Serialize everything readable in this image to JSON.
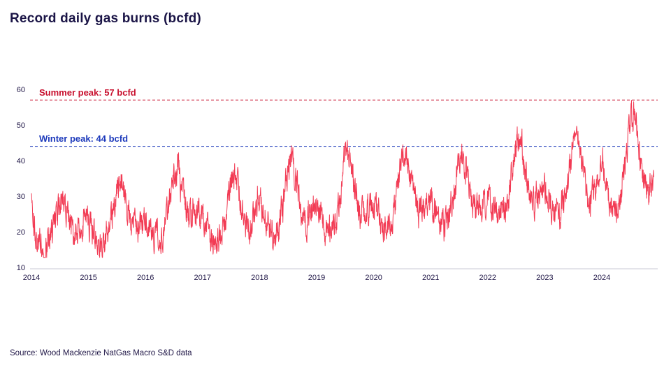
{
  "chart_data": {
    "type": "line",
    "title": "Record daily gas burns (bcfd)",
    "source": "Source: Wood Mackenzie NatGas Macro S&D data",
    "series_name": "Daily gas burns (bcfd)",
    "line_color": "#f23b54",
    "x_years": [
      2014,
      2015,
      2016,
      2017,
      2018,
      2019,
      2020,
      2021,
      2022,
      2023,
      2024
    ],
    "ylim": [
      10,
      60
    ],
    "yticks": [
      10,
      20,
      30,
      40,
      50,
      60
    ],
    "grid": "off",
    "legend": "none",
    "reference_lines": [
      {
        "label": "Summer peak: 57 bcfd",
        "value": 57,
        "color": "#c8102e"
      },
      {
        "label": "Winter peak: 44 bcfd",
        "value": 44,
        "color": "#1c39bb"
      }
    ],
    "monthly_means": [
      29,
      16,
      17,
      16,
      18,
      23,
      28,
      28,
      24,
      20,
      20,
      23,
      23,
      21,
      18,
      17,
      19,
      25,
      33,
      35,
      28,
      22,
      21,
      22,
      24,
      23,
      19,
      19,
      21,
      27,
      36,
      39,
      30,
      24,
      23,
      26,
      25,
      22,
      18,
      17,
      19,
      25,
      34,
      37,
      29,
      22,
      21,
      24,
      29,
      25,
      20,
      19,
      21,
      29,
      38,
      41,
      31,
      24,
      23,
      27,
      27,
      24,
      20,
      20,
      23,
      30,
      41,
      43,
      33,
      25,
      24,
      26,
      26,
      25,
      22,
      21,
      25,
      32,
      42,
      43,
      34,
      26,
      26,
      28,
      28,
      26,
      22,
      22,
      25,
      32,
      42,
      41,
      34,
      27,
      27,
      29,
      30,
      27,
      24,
      24,
      28,
      35,
      45,
      46,
      36,
      29,
      29,
      32,
      32,
      29,
      25,
      25,
      28,
      36,
      47,
      48,
      38,
      30,
      30,
      33,
      40,
      33,
      28,
      27,
      31,
      39,
      50,
      54,
      40,
      32,
      33
    ]
  }
}
